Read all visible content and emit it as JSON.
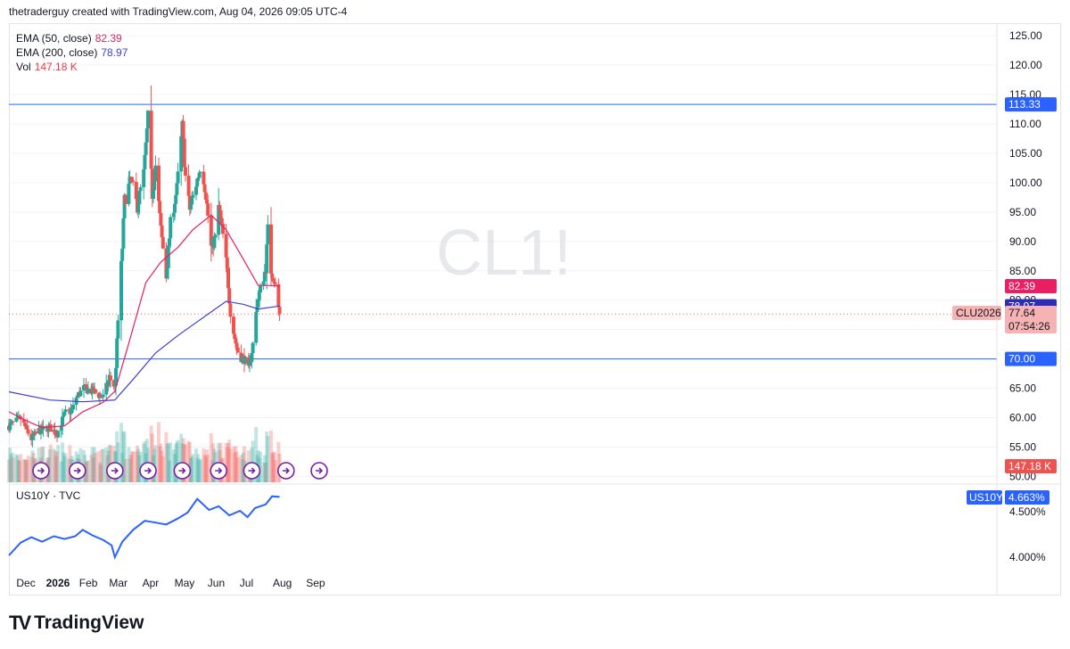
{
  "header": {
    "attribution": "thetraderguy created with TradingView.com, Aug 04, 2026 09:05 UTC-4"
  },
  "watermark": "CL1!",
  "legend": {
    "ema50": {
      "label": "EMA (50, close)",
      "value": "82.39",
      "color": "#e0245e"
    },
    "ema200": {
      "label": "EMA (200, close)",
      "value": "78.97",
      "color": "#3f3fd1"
    },
    "vol": {
      "label": "Vol",
      "value": "147.18 K",
      "color": "#f23645"
    }
  },
  "sub_legend": {
    "label": "US10Y · TVC"
  },
  "footer": {
    "brand": "TradingView"
  },
  "colors": {
    "up": "#26a69a",
    "down": "#ef5350",
    "hline": "#2962ff",
    "ema50": "#e91e63",
    "ema200": "#3f3fd1",
    "us10y": "#2962ff",
    "grid": "#f0f3fa"
  },
  "chart_data": [
    {
      "type": "candlestick",
      "symbol": "CLU2026",
      "y_axis_ticks": [
        50,
        55,
        60,
        65,
        70,
        75,
        80,
        85,
        90,
        95,
        100,
        105,
        110,
        115,
        120,
        125
      ],
      "y_axis_labels": [
        "50.00",
        "55.00",
        "60.00",
        "65.00",
        "70.00",
        "75.00",
        "80.00",
        "85.00",
        "90.00",
        "95.00",
        "100.00",
        "105.00",
        "110.00",
        "115.00",
        "120.00",
        "125.00"
      ],
      "ylim": [
        49,
        127
      ],
      "x_axis_labels": [
        "Dec",
        "2026",
        "Feb",
        "Mar",
        "Apr",
        "May",
        "Jun",
        "Jul",
        "Aug",
        "Sep"
      ],
      "horizontal_lines": [
        113.33,
        70.0
      ],
      "price_tags": [
        {
          "text": "113.33",
          "kind": "hline"
        },
        {
          "text": "82.39",
          "kind": "ema50"
        },
        {
          "text": "78.97",
          "kind": "ema200"
        },
        {
          "text": "CLU2026",
          "kind": "symbol"
        },
        {
          "text": "77.64",
          "kind": "last"
        },
        {
          "text": "07:54:26",
          "kind": "countdown"
        },
        {
          "text": "70.00",
          "kind": "hline"
        },
        {
          "text": "147.18 K",
          "kind": "volume"
        }
      ],
      "last_price": 77.64,
      "price_path": [
        [
          "2025-11-24",
          58.6
        ],
        [
          "2025-12-05",
          59.8
        ],
        [
          "2025-12-15",
          56.4
        ],
        [
          "2025-12-22",
          57.8
        ],
        [
          "2026-01-01",
          58.3
        ],
        [
          "2026-01-08",
          57.3
        ],
        [
          "2026-01-12",
          59.2
        ],
        [
          "2026-01-16",
          60.8
        ],
        [
          "2026-01-22",
          61.2
        ],
        [
          "2026-01-26",
          63.5
        ],
        [
          "2026-02-02",
          65.0
        ],
        [
          "2026-02-10",
          64.5
        ],
        [
          "2026-02-20",
          63.5
        ],
        [
          "2026-02-26",
          66.8
        ],
        [
          "2026-03-03",
          65.2
        ],
        [
          "2026-03-06",
          76.5
        ],
        [
          "2026-03-10",
          89.0
        ],
        [
          "2026-03-12",
          97.0
        ],
        [
          "2026-03-18",
          100.5
        ],
        [
          "2026-03-24",
          96.0
        ],
        [
          "2026-03-30",
          101.5
        ],
        [
          "2026-04-03",
          111.0
        ],
        [
          "2026-04-07",
          98.0
        ],
        [
          "2026-04-10",
          103.0
        ],
        [
          "2026-04-15",
          92.0
        ],
        [
          "2026-04-20",
          84.0
        ],
        [
          "2026-04-24",
          93.0
        ],
        [
          "2026-04-30",
          99.0
        ],
        [
          "2026-05-05",
          109.5
        ],
        [
          "2026-05-08",
          101.0
        ],
        [
          "2026-05-12",
          95.5
        ],
        [
          "2026-05-19",
          100.5
        ],
        [
          "2026-05-23",
          103.5
        ],
        [
          "2026-05-27",
          98.0
        ],
        [
          "2026-06-01",
          89.0
        ],
        [
          "2026-06-05",
          90.5
        ],
        [
          "2026-06-08",
          96.0
        ],
        [
          "2026-06-12",
          91.0
        ],
        [
          "2026-06-16",
          85.0
        ],
        [
          "2026-06-19",
          78.0
        ],
        [
          "2026-06-23",
          73.5
        ],
        [
          "2026-06-27",
          70.5
        ],
        [
          "2026-07-02",
          70.0
        ],
        [
          "2026-07-06",
          68.0
        ],
        [
          "2026-07-10",
          72.5
        ],
        [
          "2026-07-14",
          79.5
        ],
        [
          "2026-07-18",
          82.5
        ],
        [
          "2026-07-22",
          85.5
        ],
        [
          "2026-07-24",
          92.0
        ],
        [
          "2026-07-27",
          85.0
        ],
        [
          "2026-07-30",
          83.5
        ],
        [
          "2026-08-04",
          77.6
        ]
      ],
      "ema50": [
        [
          "2025-11-24",
          61.0
        ],
        [
          "2025-12-10",
          59.5
        ],
        [
          "2025-12-25",
          58.3
        ],
        [
          "2026-01-15",
          58.6
        ],
        [
          "2026-02-01",
          61.0
        ],
        [
          "2026-02-20",
          62.6
        ],
        [
          "2026-03-03",
          64.5
        ],
        [
          "2026-03-15",
          72.0
        ],
        [
          "2026-04-01",
          83.0
        ],
        [
          "2026-04-15",
          86.5
        ],
        [
          "2026-05-01",
          89.0
        ],
        [
          "2026-05-15",
          92.0
        ],
        [
          "2026-06-01",
          94.5
        ],
        [
          "2026-06-15",
          92.0
        ],
        [
          "2026-07-01",
          87.0
        ],
        [
          "2026-07-15",
          82.5
        ],
        [
          "2026-07-25",
          82.5
        ],
        [
          "2026-08-04",
          82.4
        ]
      ],
      "ema200": [
        [
          "2025-11-24",
          64.4
        ],
        [
          "2026-01-01",
          63.0
        ],
        [
          "2026-02-01",
          62.7
        ],
        [
          "2026-03-03",
          63.0
        ],
        [
          "2026-03-20",
          66.5
        ],
        [
          "2026-04-10",
          71.0
        ],
        [
          "2026-05-01",
          74.0
        ],
        [
          "2026-06-01",
          78.0
        ],
        [
          "2026-06-15",
          79.8
        ],
        [
          "2026-07-01",
          79.3
        ],
        [
          "2026-07-15",
          78.5
        ],
        [
          "2026-08-04",
          79.0
        ]
      ],
      "volume_last": "147.18 K"
    },
    {
      "type": "line",
      "symbol": "US10Y",
      "title": "US10Y · TVC",
      "y_axis_labels": [
        "4.000%",
        "4.500%"
      ],
      "y_axis_ticks": [
        4.0,
        4.5
      ],
      "last_value_label": "4.663%",
      "last_value": 4.663,
      "series": [
        [
          "2025-11-24",
          4.02
        ],
        [
          "2025-12-05",
          4.16
        ],
        [
          "2025-12-15",
          4.22
        ],
        [
          "2025-12-25",
          4.17
        ],
        [
          "2026-01-05",
          4.23
        ],
        [
          "2026-01-15",
          4.2
        ],
        [
          "2026-01-25",
          4.23
        ],
        [
          "2026-02-01",
          4.3
        ],
        [
          "2026-02-10",
          4.24
        ],
        [
          "2026-02-20",
          4.19
        ],
        [
          "2026-02-28",
          4.13
        ],
        [
          "2026-03-03",
          4.0
        ],
        [
          "2026-03-10",
          4.17
        ],
        [
          "2026-03-20",
          4.3
        ],
        [
          "2026-03-31",
          4.4
        ],
        [
          "2026-04-10",
          4.38
        ],
        [
          "2026-04-20",
          4.36
        ],
        [
          "2026-04-30",
          4.42
        ],
        [
          "2026-05-10",
          4.49
        ],
        [
          "2026-05-19",
          4.64
        ],
        [
          "2026-05-30",
          4.52
        ],
        [
          "2026-06-08",
          4.56
        ],
        [
          "2026-06-18",
          4.46
        ],
        [
          "2026-06-28",
          4.51
        ],
        [
          "2026-07-05",
          4.44
        ],
        [
          "2026-07-12",
          4.54
        ],
        [
          "2026-07-22",
          4.58
        ],
        [
          "2026-07-28",
          4.67
        ],
        [
          "2026-08-04",
          4.663
        ]
      ]
    }
  ]
}
